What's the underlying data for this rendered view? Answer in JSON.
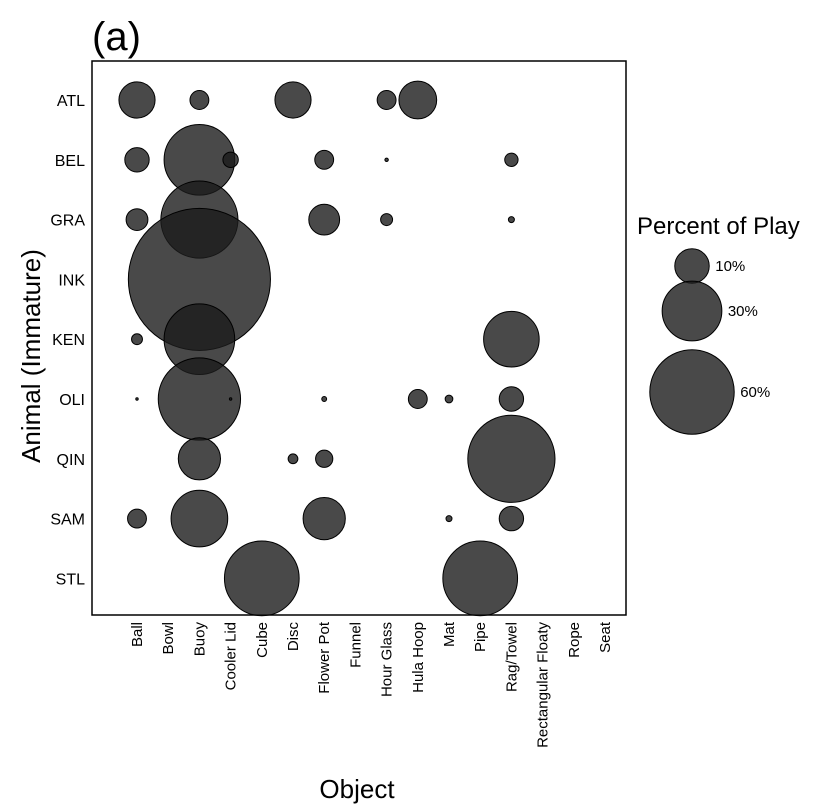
{
  "panel_label": "(a)",
  "chart_data": {
    "type": "scatter",
    "xlabel": "Object",
    "ylabel": "Animal (Immature)",
    "x_categories": [
      "Ball",
      "Bowl",
      "Buoy",
      "Cooler Lid",
      "Cube",
      "Disc",
      "Flower Pot",
      "Funnel",
      "Hour Glass",
      "Hula Hoop",
      "Mat",
      "Pipe",
      "Rag/Towel",
      "Rectangular Floaty",
      "Rope",
      "Seat"
    ],
    "y_categories": [
      "ATL",
      "BEL",
      "GRA",
      "INK",
      "KEN",
      "OLI",
      "QIN",
      "SAM",
      "STL"
    ],
    "size_metric": "Percent of Play",
    "grid": false,
    "legend": {
      "title": "Percent of Play",
      "placement": "right",
      "entries": [
        {
          "label": "10%",
          "value": 10
        },
        {
          "label": "30%",
          "value": 30
        },
        {
          "label": "60%",
          "value": 60
        }
      ]
    },
    "points": [
      {
        "animal": "ATL",
        "object": "Ball",
        "value": 11
      },
      {
        "animal": "ATL",
        "object": "Buoy",
        "value": 3
      },
      {
        "animal": "ATL",
        "object": "Disc",
        "value": 11
      },
      {
        "animal": "ATL",
        "object": "Hour Glass",
        "value": 3
      },
      {
        "animal": "ATL",
        "object": "Hula Hoop",
        "value": 12
      },
      {
        "animal": "BEL",
        "object": "Ball",
        "value": 5
      },
      {
        "animal": "BEL",
        "object": "Buoy",
        "value": 42
      },
      {
        "animal": "BEL",
        "object": "Cooler Lid",
        "value": 2
      },
      {
        "animal": "BEL",
        "object": "Flower Pot",
        "value": 3
      },
      {
        "animal": "BEL",
        "object": "Hour Glass",
        "value": 0.1
      },
      {
        "animal": "BEL",
        "object": "Rag/Towel",
        "value": 1.5
      },
      {
        "animal": "GRA",
        "object": "Ball",
        "value": 4
      },
      {
        "animal": "GRA",
        "object": "Buoy",
        "value": 50
      },
      {
        "animal": "GRA",
        "object": "Flower Pot",
        "value": 8
      },
      {
        "animal": "GRA",
        "object": "Hour Glass",
        "value": 1.2
      },
      {
        "animal": "GRA",
        "object": "Rag/Towel",
        "value": 0.3
      },
      {
        "animal": "INK",
        "object": "Buoy",
        "value": 170
      },
      {
        "animal": "KEN",
        "object": "Ball",
        "value": 1
      },
      {
        "animal": "KEN",
        "object": "Buoy",
        "value": 42
      },
      {
        "animal": "KEN",
        "object": "Rag/Towel",
        "value": 26
      },
      {
        "animal": "OLI",
        "object": "Ball",
        "value": 0.05
      },
      {
        "animal": "OLI",
        "object": "Buoy",
        "value": 57
      },
      {
        "animal": "OLI",
        "object": "Cooler Lid",
        "value": 0.05
      },
      {
        "animal": "OLI",
        "object": "Flower Pot",
        "value": 0.2
      },
      {
        "animal": "OLI",
        "object": "Hula Hoop",
        "value": 3
      },
      {
        "animal": "OLI",
        "object": "Mat",
        "value": 0.5
      },
      {
        "animal": "OLI",
        "object": "Rag/Towel",
        "value": 5
      },
      {
        "animal": "QIN",
        "object": "Buoy",
        "value": 15
      },
      {
        "animal": "QIN",
        "object": "Disc",
        "value": 0.8
      },
      {
        "animal": "QIN",
        "object": "Flower Pot",
        "value": 2.5
      },
      {
        "animal": "QIN",
        "object": "Rag/Towel",
        "value": 64
      },
      {
        "animal": "SAM",
        "object": "Ball",
        "value": 3
      },
      {
        "animal": "SAM",
        "object": "Buoy",
        "value": 27
      },
      {
        "animal": "SAM",
        "object": "Flower Pot",
        "value": 15
      },
      {
        "animal": "SAM",
        "object": "Mat",
        "value": 0.3
      },
      {
        "animal": "SAM",
        "object": "Rag/Towel",
        "value": 5
      },
      {
        "animal": "STL",
        "object": "Cube",
        "value": 47
      },
      {
        "animal": "STL",
        "object": "Pipe",
        "value": 47
      }
    ]
  },
  "colors": {
    "bubble_fill": "#1c1c1c",
    "bubble_opacity": "0.8",
    "bubble_stroke": "#000000",
    "axis": "#000000"
  }
}
